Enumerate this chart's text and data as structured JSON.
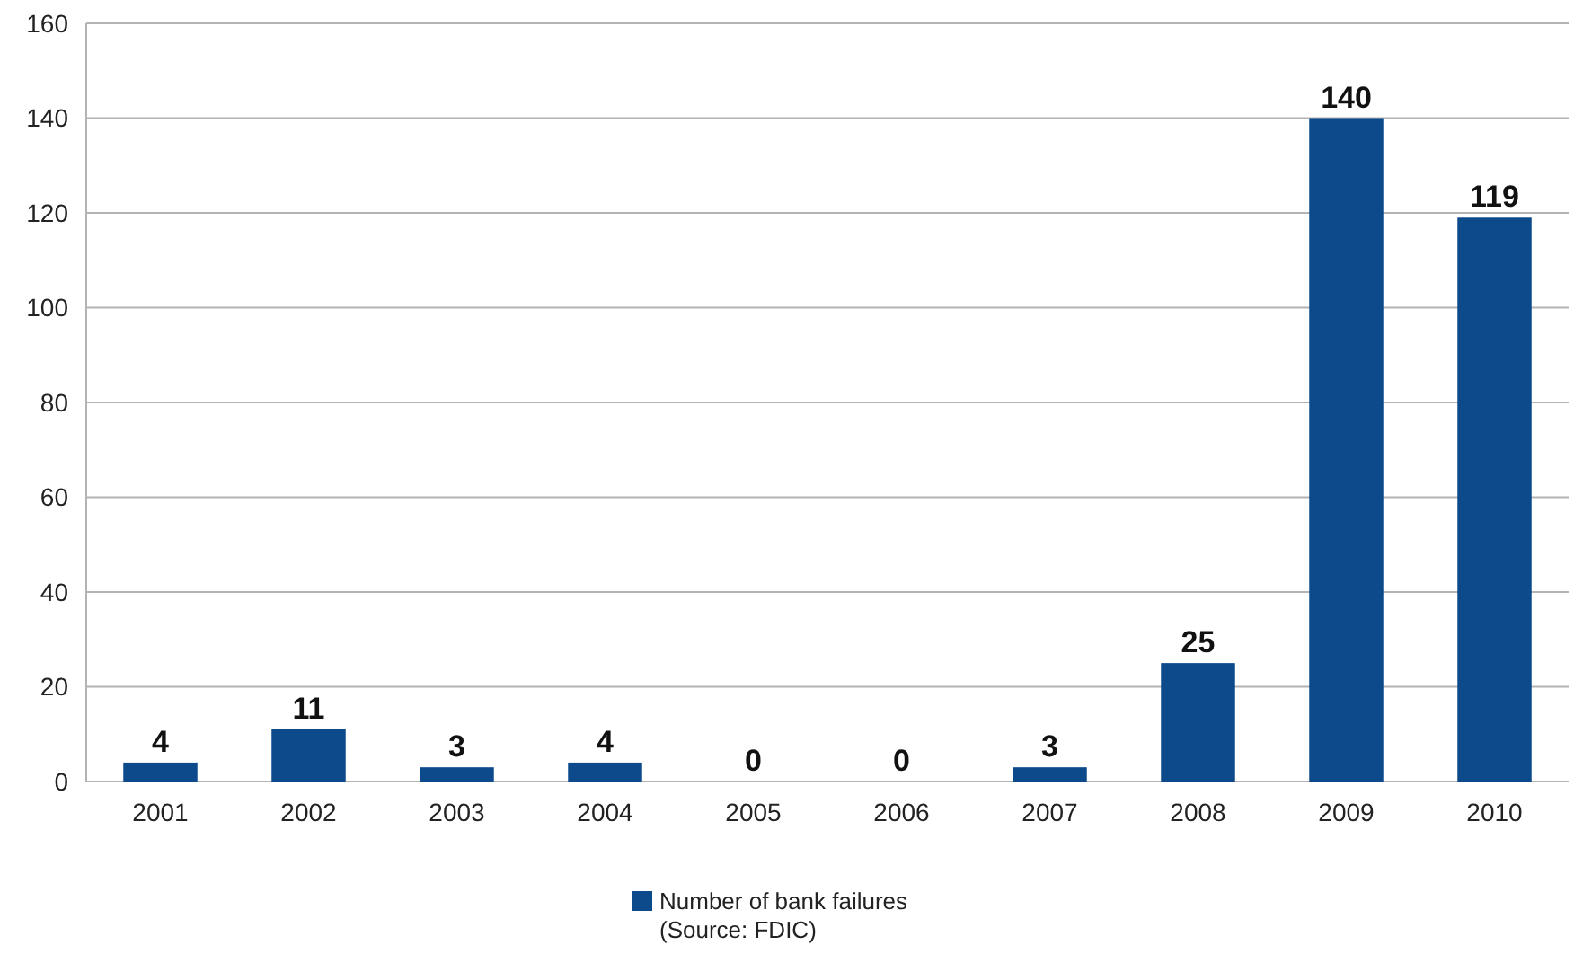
{
  "chart_data": {
    "type": "bar",
    "categories": [
      "2001",
      "2002",
      "2003",
      "2004",
      "2005",
      "2006",
      "2007",
      "2008",
      "2009",
      "2010"
    ],
    "series": [
      {
        "name": "Number of bank failures",
        "color": "#0d4a8c",
        "values": [
          4,
          11,
          3,
          4,
          0,
          0,
          3,
          25,
          140,
          119
        ]
      }
    ],
    "ylim": [
      0,
      160
    ],
    "yticks": [
      0,
      20,
      40,
      60,
      80,
      100,
      120,
      140,
      160
    ],
    "grid": "y",
    "data_labels": true,
    "legend": "bottom",
    "annotations": [
      "(Source: FDIC)"
    ]
  }
}
